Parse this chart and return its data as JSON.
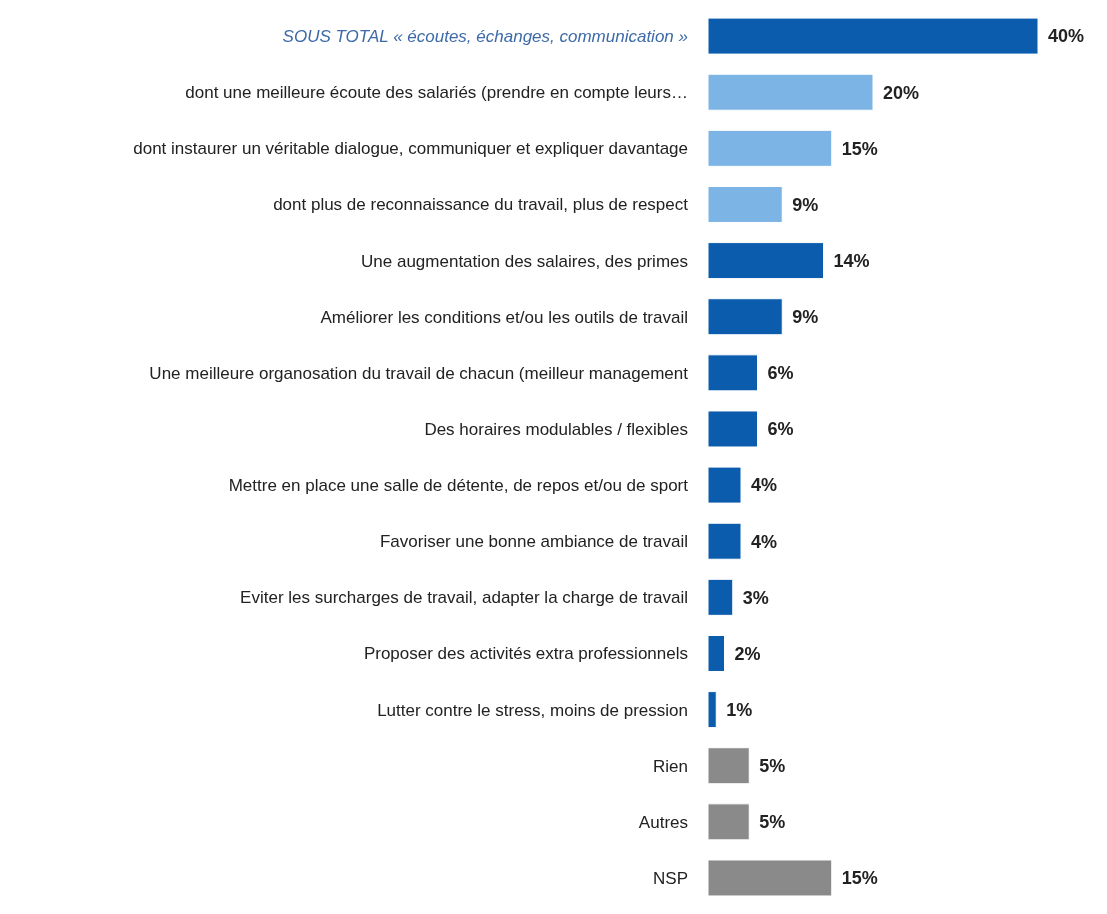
{
  "chart_data": {
    "type": "bar",
    "orientation": "horizontal",
    "categories": [
      "SOUS TOTAL « écoutes, échanges, communication »",
      "dont une meilleure écoute des salariés (prendre en compte leurs…",
      "dont instaurer un véritable dialogue, communiquer et expliquer davantage",
      "dont plus de reconnaissance du travail, plus de respect",
      "Une augmentation des salaires, des primes",
      "Améliorer les conditions et/ou les outils de travail",
      "Une meilleure organosation du travail de chacun (meilleur management",
      "Des horaires modulables / flexibles",
      "Mettre en place une salle de détente, de repos et/ou de sport",
      "Favoriser une bonne ambiance de travail",
      "Eviter les surcharges de travail, adapter la charge de travail",
      "Proposer des activités extra professionnels",
      "Lutter contre le stress, moins de pression",
      "Rien",
      "Autres",
      "NSP"
    ],
    "values": [
      40,
      20,
      15,
      9,
      14,
      9,
      6,
      6,
      4,
      4,
      3,
      2,
      1,
      5,
      5,
      15
    ],
    "value_labels": [
      "40%",
      "20%",
      "15%",
      "9%",
      "14%",
      "9%",
      "6%",
      "6%",
      "4%",
      "4%",
      "3%",
      "2%",
      "1%",
      "5%",
      "5%",
      "15%"
    ],
    "colors": [
      "#0b5cad",
      "#7db4e6",
      "#7db4e6",
      "#7db4e6",
      "#0b5cad",
      "#0b5cad",
      "#0b5cad",
      "#0b5cad",
      "#0b5cad",
      "#0b5cad",
      "#0b5cad",
      "#0b5cad",
      "#0b5cad",
      "#8a8a8a",
      "#8a8a8a",
      "#8a8a8a"
    ],
    "grid": false,
    "legend": false
  }
}
